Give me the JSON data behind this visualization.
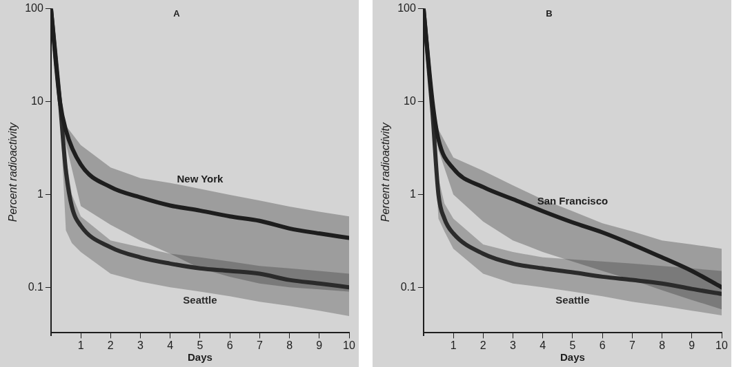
{
  "chart_data": [
    {
      "type": "line",
      "title": "A",
      "xlabel": "Days",
      "ylabel": "Percent radioactivity",
      "log": "y",
      "xlim": [
        0,
        10
      ],
      "xticks": [
        1,
        2,
        3,
        4,
        5,
        6,
        7,
        8,
        9,
        10
      ],
      "ylim": [
        0.03,
        100
      ],
      "yticks": [
        0.1,
        1,
        10,
        100
      ],
      "grid": false,
      "legend": false,
      "marker": "none",
      "line_style": "solid",
      "series": [
        {
          "name": "New York",
          "color": "#1e1e1e",
          "x": [
            0,
            0.3,
            0.5,
            1,
            2,
            3,
            4,
            5,
            6,
            7,
            8,
            9,
            10
          ],
          "values": [
            100,
            10,
            4.9,
            2.1,
            1.2,
            0.93,
            0.76,
            0.67,
            0.58,
            0.52,
            0.43,
            0.38,
            0.34
          ],
          "upper": [
            null,
            10,
            5.5,
            3.4,
            1.95,
            1.5,
            1.33,
            1.15,
            0.99,
            0.86,
            0.74,
            0.65,
            0.58
          ],
          "lower": [
            null,
            8,
            3.5,
            0.75,
            0.47,
            0.32,
            0.23,
            0.16,
            0.13,
            0.11,
            0.1,
            0.095,
            0.09
          ]
        },
        {
          "name": "Seattle",
          "color": "#2b2b2b",
          "x": [
            0,
            0.3,
            0.5,
            0.7,
            1,
            2,
            3,
            4,
            5,
            6,
            7,
            8,
            9,
            10
          ],
          "values": [
            100,
            10,
            1.8,
            0.74,
            0.46,
            0.27,
            0.21,
            0.18,
            0.16,
            0.15,
            0.14,
            0.12,
            0.11,
            0.1
          ],
          "upper": [
            null,
            10,
            2.5,
            1.0,
            0.58,
            0.32,
            0.27,
            0.23,
            0.21,
            0.19,
            0.17,
            0.16,
            0.15,
            0.14
          ],
          "lower": [
            null,
            8,
            0.41,
            0.3,
            0.24,
            0.14,
            0.115,
            0.1,
            0.09,
            0.08,
            0.07,
            0.063,
            0.056,
            0.049
          ]
        }
      ]
    },
    {
      "type": "line",
      "title": "B",
      "xlabel": "Days",
      "ylabel": "Percent radioactivity",
      "log": "y",
      "xlim": [
        0,
        10
      ],
      "xticks": [
        1,
        2,
        3,
        4,
        5,
        6,
        7,
        8,
        9,
        10
      ],
      "ylim": [
        0.03,
        100
      ],
      "yticks": [
        0.1,
        1,
        10,
        100
      ],
      "grid": false,
      "legend": false,
      "marker": "none",
      "line_style": "solid",
      "series": [
        {
          "name": "San Francisco",
          "color": "#1e1e1e",
          "x": [
            0,
            0.3,
            0.5,
            1,
            2,
            3,
            4,
            5,
            6,
            7,
            8,
            9,
            10
          ],
          "values": [
            100,
            10,
            3.9,
            1.9,
            1.2,
            0.89,
            0.66,
            0.5,
            0.39,
            0.29,
            0.21,
            0.15,
            0.1
          ],
          "upper": [
            null,
            10,
            5,
            2.5,
            1.8,
            1.25,
            0.88,
            0.66,
            0.49,
            0.4,
            0.32,
            0.29,
            0.26
          ],
          "lower": [
            null,
            8,
            3,
            1.0,
            0.51,
            0.32,
            0.24,
            0.19,
            0.15,
            0.12,
            0.093,
            0.073,
            0.058
          ]
        },
        {
          "name": "Seattle",
          "color": "#2b2b2b",
          "x": [
            0,
            0.3,
            0.5,
            0.7,
            1,
            2,
            3,
            4,
            5,
            6,
            7,
            8,
            9,
            10
          ],
          "values": [
            100,
            7.6,
            1.0,
            0.55,
            0.38,
            0.23,
            0.18,
            0.16,
            0.145,
            0.13,
            0.12,
            0.11,
            0.096,
            0.085
          ],
          "upper": [
            null,
            7.6,
            1.5,
            0.8,
            0.55,
            0.29,
            0.24,
            0.21,
            0.2,
            0.19,
            0.18,
            0.17,
            0.16,
            0.15
          ],
          "lower": [
            null,
            7.6,
            0.55,
            0.4,
            0.26,
            0.14,
            0.11,
            0.1,
            0.09,
            0.08,
            0.07,
            0.063,
            0.056,
            0.05
          ]
        }
      ]
    }
  ]
}
